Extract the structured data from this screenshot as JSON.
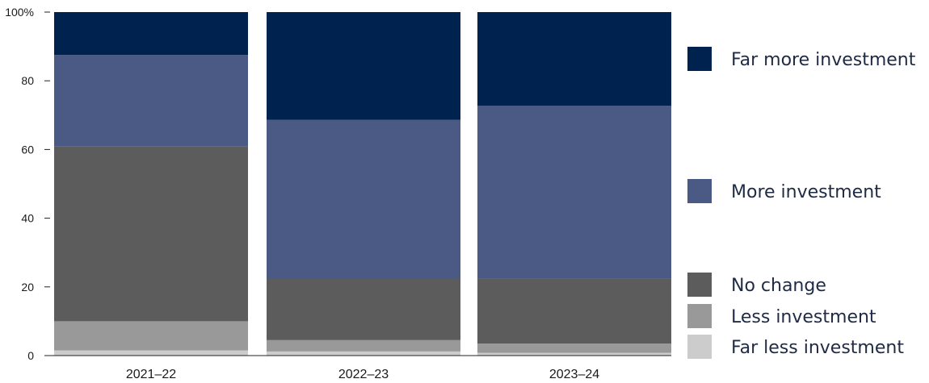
{
  "chart_data": {
    "type": "bar",
    "stacked": true,
    "categories": [
      "2021–22",
      "2022–23",
      "2023–24"
    ],
    "series": [
      {
        "name": "Far less investment",
        "color": "#cccccc",
        "values": [
          1.5,
          1.2,
          0.8
        ]
      },
      {
        "name": "Less investment",
        "color": "#999999",
        "values": [
          8.5,
          3.3,
          2.7
        ]
      },
      {
        "name": "No change",
        "color": "#5c5c5c",
        "values": [
          51,
          17.8,
          18.9
        ]
      },
      {
        "name": "More investment",
        "color": "#4a5a85",
        "values": [
          26.5,
          46.3,
          50.3
        ]
      },
      {
        "name": "Far more investment",
        "color": "#00224f",
        "values": [
          12.5,
          31.4,
          27.3
        ]
      }
    ],
    "yticks": [
      "0",
      "20",
      "40",
      "60",
      "80",
      "100%"
    ],
    "ylim": [
      0,
      100
    ],
    "legend_position": "right",
    "grid": false
  }
}
